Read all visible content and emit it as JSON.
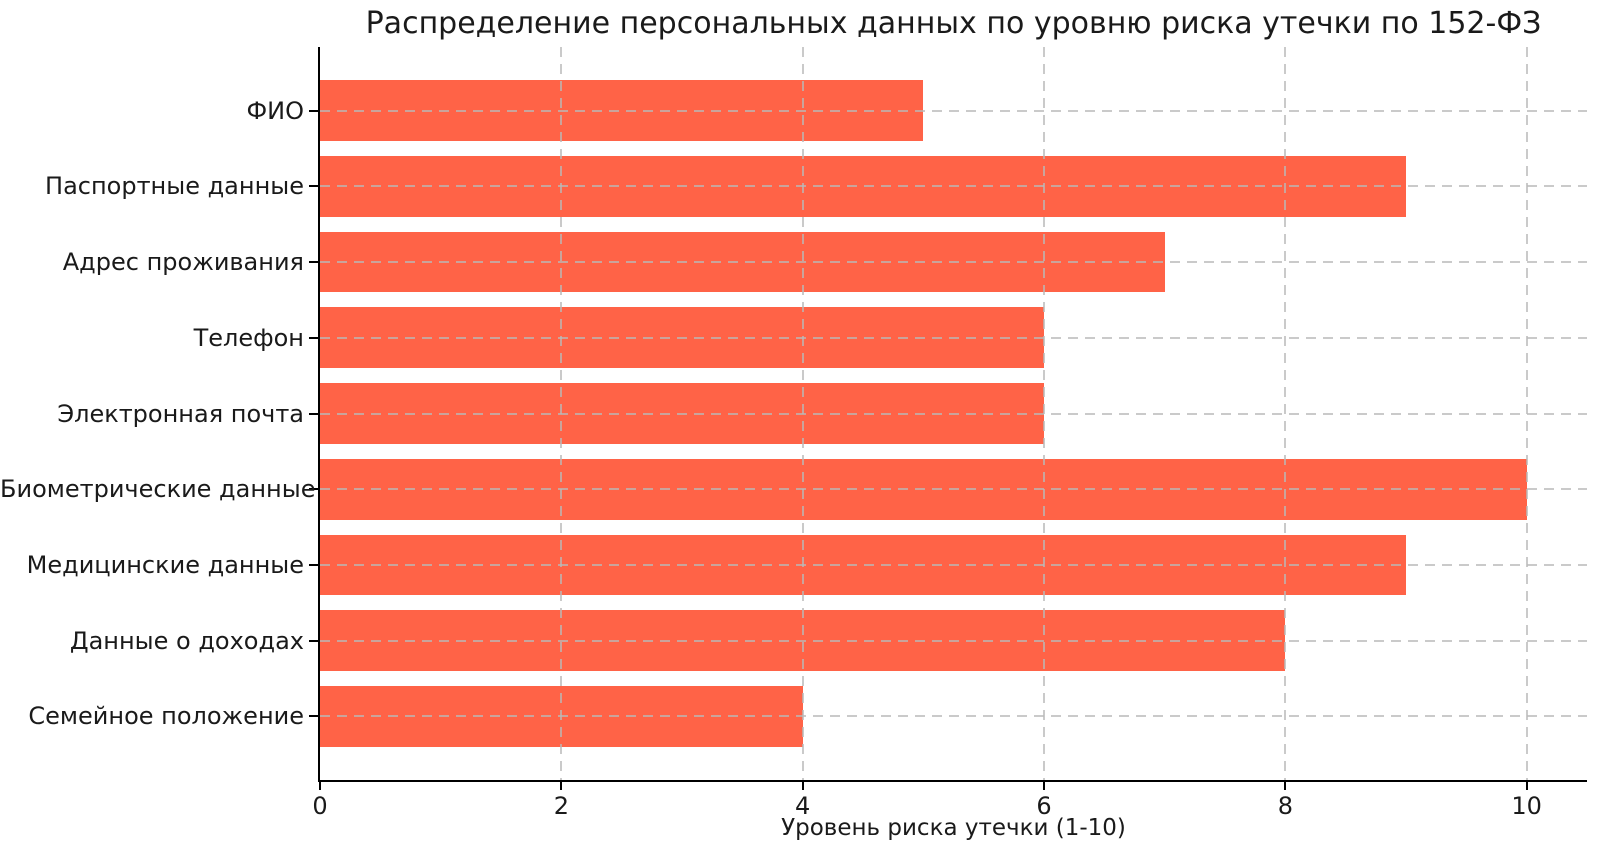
{
  "chart_data": {
    "type": "bar",
    "orientation": "horizontal",
    "title": "Распределение персональных данных по уровню риска утечки по 152-ФЗ",
    "xlabel": "Уровень риска утечки (1-10)",
    "ylabel": "",
    "categories": [
      "ФИО",
      "Паспортные данные",
      "Адрес проживания",
      "Телефон",
      "Электронная почта",
      "Биометрические данные",
      "Медицинские данные",
      "Данные о доходах",
      "Семейное положение"
    ],
    "values": [
      5,
      9,
      7,
      6,
      6,
      10,
      9,
      8,
      4
    ],
    "xticks": [
      0,
      2,
      4,
      6,
      8,
      10
    ],
    "xlim": [
      0,
      10.5
    ],
    "legend": "none",
    "grid": true,
    "grid_style": "dashed",
    "colors": {
      "bar": "#FF6347",
      "grid": "#b9b9b9",
      "spine": "#000000",
      "text": "#1a1a1a",
      "background": "#ffffff"
    }
  }
}
